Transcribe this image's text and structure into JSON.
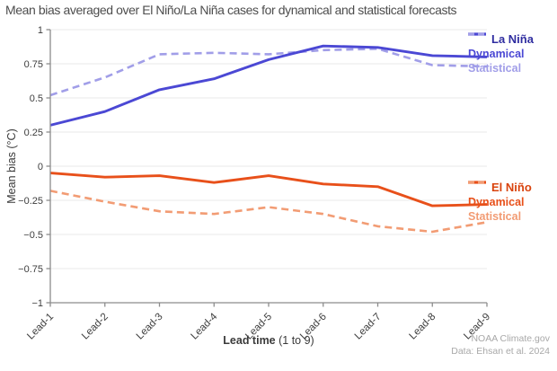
{
  "attribution": {
    "line1": "NOAA Climate.gov",
    "line2": "Data: Ehsan et al. 2024"
  },
  "chart_data": {
    "type": "line",
    "title": "Mean bias averaged over El Niño/La Niña cases for dynamical and statistical forecasts",
    "xlabel_bold": "Lead time",
    "xlabel_rest": " (1 to 9)",
    "ylabel": "Mean bias (°C)",
    "categories": [
      "Lead-1",
      "Lead-2",
      "Lead-3",
      "Lead-4",
      "Lead-5",
      "Lead-6",
      "Lead-7",
      "Lead-8",
      "Lead-9"
    ],
    "yticks": [
      1,
      0.75,
      0.5,
      0.25,
      0,
      -0.25,
      -0.5,
      -0.75,
      -1
    ],
    "ylim": [
      -1,
      1
    ],
    "grid": true,
    "legend_position": "right",
    "series": [
      {
        "name": "La Niña Dynamical",
        "group": "La Niña",
        "style": "solid",
        "color": "#4b48d4",
        "values": [
          0.3,
          0.4,
          0.56,
          0.64,
          0.78,
          0.88,
          0.87,
          0.81,
          0.8
        ]
      },
      {
        "name": "La Niña Statistical",
        "group": "La Niña",
        "style": "dashed",
        "color": "#a19ee8",
        "values": [
          0.52,
          0.65,
          0.82,
          0.83,
          0.82,
          0.85,
          0.86,
          0.74,
          0.73
        ]
      },
      {
        "name": "El Niño Dynamical",
        "group": "El Niño",
        "style": "solid",
        "color": "#e8501a",
        "values": [
          -0.05,
          -0.08,
          -0.07,
          -0.12,
          -0.07,
          -0.13,
          -0.15,
          -0.29,
          -0.28
        ]
      },
      {
        "name": "El Niño Statistical",
        "group": "El Niño",
        "style": "dashed",
        "color": "#f29c74",
        "values": [
          -0.18,
          -0.26,
          -0.33,
          -0.35,
          -0.3,
          -0.35,
          -0.44,
          -0.48,
          -0.41
        ]
      }
    ],
    "legend": {
      "la_nina": {
        "title": "La Niña",
        "dynamical": "Dynamical",
        "statistical": "Statistical"
      },
      "el_nino": {
        "title": "El Niño",
        "dynamical": "Dynamical",
        "statistical": "Statistical"
      }
    },
    "colors": {
      "la_nina_title": "#2f2da0",
      "la_nina_dynamical": "#4b48d4",
      "la_nina_statistical": "#a19ee8",
      "el_nino_title": "#d9430d",
      "el_nino_dynamical": "#e8501a",
      "el_nino_statistical": "#f29c74",
      "grid": "#e9e9e9",
      "axis": "#8c8c8c",
      "tick_label": "#3d3d3d",
      "background": "#ffffff"
    }
  }
}
